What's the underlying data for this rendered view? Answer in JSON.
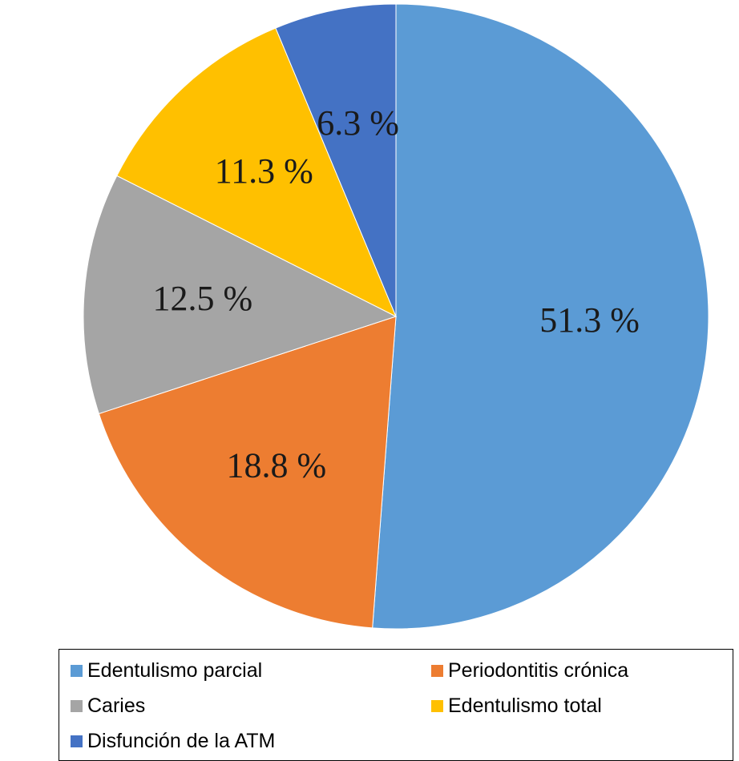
{
  "chart_data": {
    "type": "pie",
    "title": "",
    "start_angle_deg": 0,
    "direction": "clockwise",
    "slices": [
      {
        "label": "Edentulismo parcial",
        "value": 51.3,
        "value_label": "51.3 %",
        "color": "#5B9BD5"
      },
      {
        "label": "Periodontitis crónica",
        "value": 18.8,
        "value_label": "18.8 %",
        "color": "#ED7D31"
      },
      {
        "label": "Caries",
        "value": 12.5,
        "value_label": "12.5 %",
        "color": "#A5A5A5"
      },
      {
        "label": "Edentulismo total",
        "value": 11.3,
        "value_label": "11.3 %",
        "color": "#FFC000"
      },
      {
        "label": "Disfunción de la ATM",
        "value": 6.3,
        "value_label": "6.3 %",
        "color": "#4472C4"
      }
    ],
    "legend": {
      "position": "bottom",
      "border": true,
      "items": [
        {
          "label": "Edentulismo parcial",
          "color": "#5B9BD5"
        },
        {
          "label": "Periodontitis crónica",
          "color": "#ED7D31"
        },
        {
          "label": "Caries",
          "color": "#A5A5A5"
        },
        {
          "label": "Edentulismo total",
          "color": "#FFC000"
        },
        {
          "label": "Disfunción de la ATM",
          "color": "#4472C4"
        }
      ]
    }
  }
}
